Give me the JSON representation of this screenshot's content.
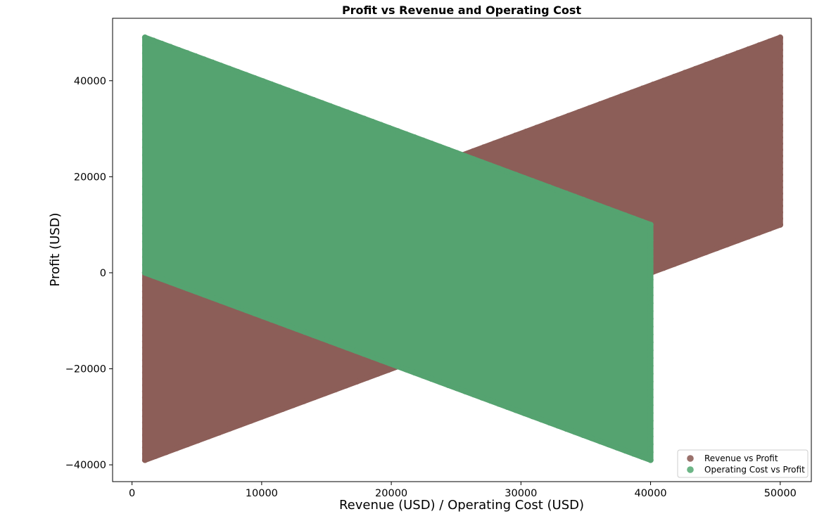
{
  "chart_data": {
    "type": "scatter",
    "title": "Profit vs Revenue and Operating Cost",
    "xlabel": "Revenue (USD) / Operating Cost (USD)",
    "ylabel": "Profit (USD)",
    "xlim": [
      -1500,
      52400
    ],
    "ylim": [
      -43500,
      53000
    ],
    "xticks": [
      0,
      10000,
      20000,
      30000,
      40000,
      50000
    ],
    "xtick_labels": [
      "0",
      "10000",
      "20000",
      "30000",
      "40000",
      "50000"
    ],
    "yticks": [
      -40000,
      -20000,
      0,
      20000,
      40000
    ],
    "ytick_labels": [
      "−40000",
      "−20000",
      "0",
      "20000",
      "40000"
    ],
    "grid": false,
    "legend_position": "lower-right",
    "series": [
      {
        "name": "Revenue vs Profit",
        "color": "#8c5e58",
        "alpha": 0.8,
        "description_of_region": "dense band bounded by lines profit = revenue - 40000 (lower) and profit = revenue - 1000 (upper), revenue from 1000 to 50000",
        "x_range": [
          1000,
          50000
        ],
        "lower_offset": -40000,
        "upper_offset": -1000,
        "slope": 1
      },
      {
        "name": "Operating Cost vs Profit",
        "color": "#55a370",
        "alpha": 0.8,
        "description_of_region": "dense band bounded by lines profit = 1000 - cost (lower) and profit = 50000 - cost (upper), cost from 1000 to 40000",
        "x_range": [
          1000,
          40000
        ],
        "lower_offset": 1000,
        "upper_offset": 50000,
        "slope": -1
      }
    ]
  },
  "legend": {
    "items": [
      {
        "label": "Revenue vs Profit",
        "color": "#9a716b"
      },
      {
        "label": "Operating Cost vs Profit",
        "color": "#6cb586"
      }
    ]
  }
}
